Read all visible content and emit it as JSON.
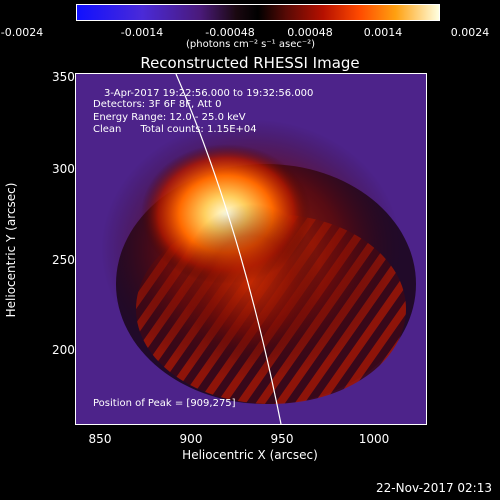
{
  "colorbar": {
    "ticks": [
      "-0.0024",
      "-0.0014",
      "-0.00048",
      "0.00048",
      "0.0014",
      "0.0024"
    ],
    "unit_label": "(photons cm⁻² s⁻¹ asec⁻²)"
  },
  "image": {
    "title": "Reconstructed RHESSI Image",
    "info_lines": [
      "3-Apr-2017 19:22:56.000 to 19:32:56.000",
      "Detectors: 3F 6F 8F, Att 0",
      "Energy Range: 12.0 - 25.0 keV",
      "Clean      Total counts: 1.15E+04"
    ],
    "peak_label": "Position of Peak = [909,275]",
    "peak_x": 909,
    "peak_y": 275
  },
  "axes": {
    "xlabel": "Heliocentric X (arcsec)",
    "ylabel": "Heliocentric Y (arcsec)",
    "xticks": [
      "850",
      "900",
      "950",
      "1000"
    ],
    "yticks": [
      "350",
      "300",
      "250",
      "200"
    ],
    "x_range": [
      835,
      1025
    ],
    "y_range": [
      160,
      350
    ]
  },
  "footer": {
    "date_stamp": "22-Nov-2017 02:13"
  }
}
